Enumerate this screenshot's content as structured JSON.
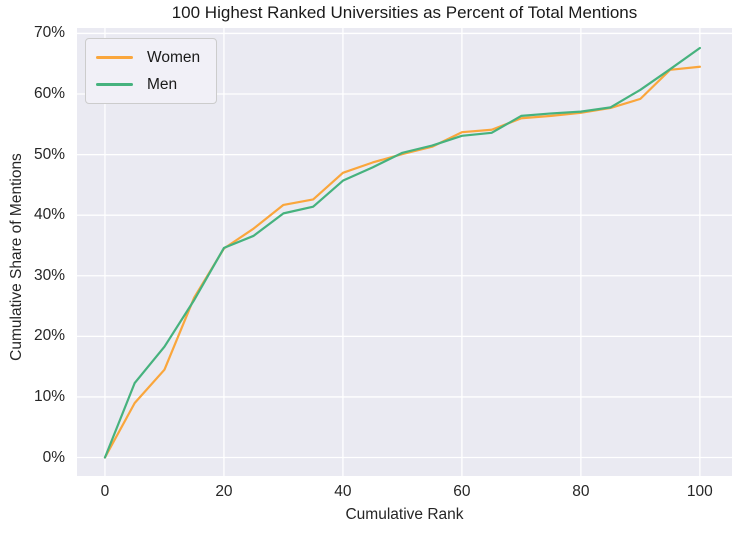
{
  "chart_data": {
    "type": "line",
    "title": "100 Highest Ranked Universities as Percent of Total Mentions",
    "xlabel": "Cumulative Rank",
    "ylabel": "Cumulative Share of Mentions",
    "x": [
      0,
      5,
      10,
      15,
      20,
      25,
      30,
      35,
      40,
      45,
      50,
      55,
      60,
      65,
      70,
      75,
      80,
      85,
      90,
      95,
      100
    ],
    "series": [
      {
        "name": "Women",
        "color": "#faa63c",
        "values": [
          0,
          9.0,
          14.5,
          26.4,
          34.5,
          37.8,
          41.7,
          42.6,
          47.0,
          48.7,
          50.1,
          51.3,
          53.7,
          54.1,
          56.0,
          56.4,
          56.9,
          57.7,
          59.2,
          64.0,
          64.5
        ]
      },
      {
        "name": "Men",
        "color": "#46b27e",
        "values": [
          0,
          12.3,
          18.3,
          26.0,
          34.6,
          36.6,
          40.3,
          41.4,
          45.7,
          47.9,
          50.3,
          51.5,
          53.1,
          53.6,
          56.4,
          56.8,
          57.1,
          57.8,
          60.7,
          64.1,
          67.6
        ]
      }
    ],
    "xlim": [
      -4.7,
      105.4
    ],
    "ylim": [
      -3.05,
      70.9
    ],
    "xticks": [
      0,
      20,
      40,
      60,
      80,
      100
    ],
    "xtick_labels": [
      "0",
      "20",
      "40",
      "60",
      "80",
      "100"
    ],
    "yticks": [
      0,
      10,
      20,
      30,
      40,
      50,
      60,
      70
    ],
    "ytick_labels": [
      "0%",
      "10%",
      "20%",
      "30%",
      "40%",
      "50%",
      "60%",
      "70%"
    ],
    "legend": {
      "position": "upper-left",
      "entries": [
        "Women",
        "Men"
      ]
    },
    "style": {
      "plot_bg": "#eaeaf2",
      "grid_color": "#ffffff",
      "text_color": "#262626",
      "line_width": 2.2,
      "grid": "on"
    }
  }
}
